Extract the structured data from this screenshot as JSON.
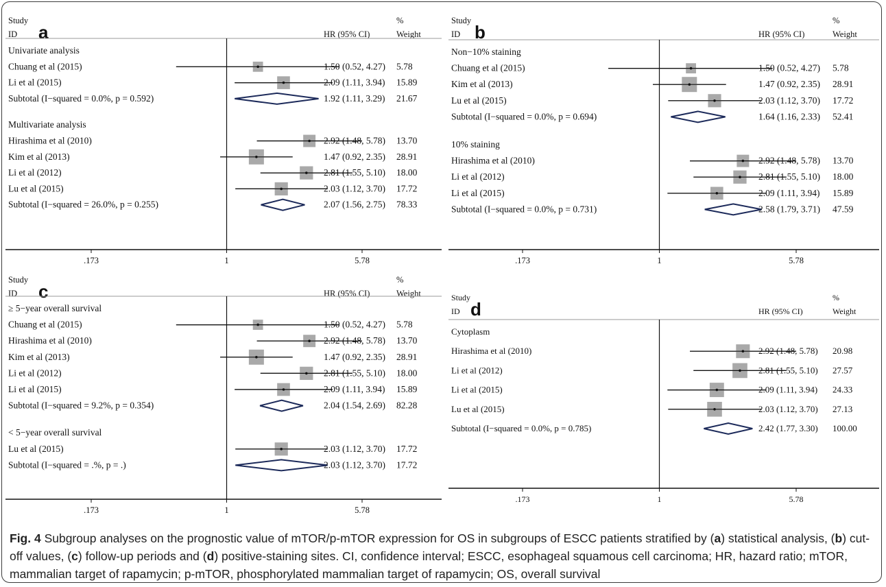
{
  "figure": {
    "caption": {
      "fig_label": "Fig. 4",
      "part1": " Subgroup analyses on the prognostic value of mTOR/p-mTOR expression for OS in subgroups of ESCC patients stratified by (",
      "a": "a",
      "part2": ") statistical analysis, (",
      "b": "b",
      "part3": ") cut-off values, (",
      "c": "c",
      "part4": ") follow-up periods and (",
      "d": "d",
      "part5": ") positive-staining sites. CI, confidence interval; ESCC, esophageal squamous cell carcinoma; HR, hazard ratio; mTOR, mammalian target of rapamycin; p-mTOR, phosphorylated mammalian target of rapamycin; OS, overall survival"
    }
  },
  "chart_data": [
    {
      "type": "forest",
      "panel": "a",
      "header": {
        "study": "Study",
        "id": "ID",
        "hr": "HR (95% CI)",
        "pct": "%",
        "weight": "Weight"
      },
      "xscale": "log",
      "xlim": [
        0.173,
        5.78
      ],
      "xticks": [
        ".173",
        "1",
        "5.78"
      ],
      "tick_values": [
        0.173,
        1,
        5.78
      ],
      "groups": [
        {
          "name": "Univariate analysis",
          "studies": [
            {
              "label": "Chuang et al (2015)",
              "hr": 1.5,
              "lo": 0.52,
              "hi": 4.27,
              "weight": 5.78,
              "hr_text": "1.50 (0.52, 4.27)",
              "weight_text": "5.78"
            },
            {
              "label": "Li et al (2015)",
              "hr": 2.09,
              "lo": 1.11,
              "hi": 3.94,
              "weight": 15.89,
              "hr_text": "2.09 (1.11, 3.94)",
              "weight_text": "15.89"
            }
          ],
          "subtotal": {
            "label": "Subtotal  (I−squared = 0.0%, p = 0.592)",
            "hr": 1.92,
            "lo": 1.11,
            "hi": 3.29,
            "hr_text": "1.92 (1.11, 3.29)",
            "weight_text": "21.67"
          }
        },
        {
          "name": "Multivariate analysis",
          "studies": [
            {
              "label": "Hirashima et al (2010)",
              "hr": 2.92,
              "lo": 1.48,
              "hi": 5.78,
              "weight": 13.7,
              "hr_text": "2.92 (1.48, 5.78)",
              "weight_text": "13.70"
            },
            {
              "label": "Kim et al (2013)",
              "hr": 1.47,
              "lo": 0.92,
              "hi": 2.35,
              "weight": 28.91,
              "hr_text": "1.47 (0.92, 2.35)",
              "weight_text": "28.91"
            },
            {
              "label": "Li et al (2012)",
              "hr": 2.81,
              "lo": 1.55,
              "hi": 5.1,
              "weight": 18.0,
              "hr_text": "2.81 (1.55, 5.10)",
              "weight_text": "18.00"
            },
            {
              "label": "Lu et al (2015)",
              "hr": 2.03,
              "lo": 1.12,
              "hi": 3.7,
              "weight": 17.72,
              "hr_text": "2.03 (1.12, 3.70)",
              "weight_text": "17.72"
            }
          ],
          "subtotal": {
            "label": "Subtotal  (I−squared = 26.0%, p = 0.255)",
            "hr": 2.07,
            "lo": 1.56,
            "hi": 2.75,
            "hr_text": "2.07 (1.56, 2.75)",
            "weight_text": "78.33"
          }
        }
      ]
    },
    {
      "type": "forest",
      "panel": "b",
      "header": {
        "study": "Study",
        "id": "ID",
        "hr": "HR (95% CI)",
        "pct": "%",
        "weight": "Weight"
      },
      "xscale": "log",
      "xlim": [
        0.173,
        5.78
      ],
      "xticks": [
        ".173",
        "1",
        "5.78"
      ],
      "tick_values": [
        0.173,
        1,
        5.78
      ],
      "groups": [
        {
          "name": "Non−10% staining",
          "studies": [
            {
              "label": "Chuang et al (2015)",
              "hr": 1.5,
              "lo": 0.52,
              "hi": 4.27,
              "weight": 5.78,
              "hr_text": "1.50 (0.52, 4.27)",
              "weight_text": "5.78"
            },
            {
              "label": "Kim et al (2013)",
              "hr": 1.47,
              "lo": 0.92,
              "hi": 2.35,
              "weight": 28.91,
              "hr_text": "1.47 (0.92, 2.35)",
              "weight_text": "28.91"
            },
            {
              "label": "Lu et al (2015)",
              "hr": 2.03,
              "lo": 1.12,
              "hi": 3.7,
              "weight": 17.72,
              "hr_text": "2.03 (1.12, 3.70)",
              "weight_text": "17.72"
            }
          ],
          "subtotal": {
            "label": "Subtotal  (I−squared = 0.0%, p = 0.694)",
            "hr": 1.64,
            "lo": 1.16,
            "hi": 2.33,
            "hr_text": "1.64 (1.16, 2.33)",
            "weight_text": "52.41"
          }
        },
        {
          "name": "10% staining",
          "studies": [
            {
              "label": "Hirashima et al (2010)",
              "hr": 2.92,
              "lo": 1.48,
              "hi": 5.78,
              "weight": 13.7,
              "hr_text": "2.92 (1.48, 5.78)",
              "weight_text": "13.70"
            },
            {
              "label": "Li et al (2012)",
              "hr": 2.81,
              "lo": 1.55,
              "hi": 5.1,
              "weight": 18.0,
              "hr_text": "2.81 (1.55, 5.10)",
              "weight_text": "18.00"
            },
            {
              "label": "Li et al (2015)",
              "hr": 2.09,
              "lo": 1.11,
              "hi": 3.94,
              "weight": 15.89,
              "hr_text": "2.09 (1.11, 3.94)",
              "weight_text": "15.89"
            }
          ],
          "subtotal": {
            "label": "Subtotal  (I−squared = 0.0%, p = 0.731)",
            "hr": 2.58,
            "lo": 1.79,
            "hi": 3.71,
            "hr_text": "2.58 (1.79, 3.71)",
            "weight_text": "47.59"
          }
        }
      ]
    },
    {
      "type": "forest",
      "panel": "c",
      "header": {
        "study": "Study",
        "id": "ID",
        "hr": "HR (95% CI)",
        "pct": "%",
        "weight": "Weight"
      },
      "xscale": "log",
      "xlim": [
        0.173,
        5.78
      ],
      "xticks": [
        ".173",
        "1",
        "5.78"
      ],
      "tick_values": [
        0.173,
        1,
        5.78
      ],
      "groups": [
        {
          "name": "≥ 5−year overall survival",
          "studies": [
            {
              "label": "Chuang et al (2015)",
              "hr": 1.5,
              "lo": 0.52,
              "hi": 4.27,
              "weight": 5.78,
              "hr_text": "1.50 (0.52, 4.27)",
              "weight_text": "5.78"
            },
            {
              "label": "Hirashima et al (2010)",
              "hr": 2.92,
              "lo": 1.48,
              "hi": 5.78,
              "weight": 13.7,
              "hr_text": "2.92 (1.48, 5.78)",
              "weight_text": "13.70"
            },
            {
              "label": "Kim et al (2013)",
              "hr": 1.47,
              "lo": 0.92,
              "hi": 2.35,
              "weight": 28.91,
              "hr_text": "1.47 (0.92, 2.35)",
              "weight_text": "28.91"
            },
            {
              "label": "Li et al (2012)",
              "hr": 2.81,
              "lo": 1.55,
              "hi": 5.1,
              "weight": 18.0,
              "hr_text": "2.81 (1.55, 5.10)",
              "weight_text": "18.00"
            },
            {
              "label": "Li et al (2015)",
              "hr": 2.09,
              "lo": 1.11,
              "hi": 3.94,
              "weight": 15.89,
              "hr_text": "2.09 (1.11, 3.94)",
              "weight_text": "15.89"
            }
          ],
          "subtotal": {
            "label": "Subtotal  (I−squared = 9.2%, p = 0.354)",
            "hr": 2.04,
            "lo": 1.54,
            "hi": 2.69,
            "hr_text": "2.04 (1.54, 2.69)",
            "weight_text": "82.28"
          }
        },
        {
          "name": "< 5−year overall survival",
          "studies": [
            {
              "label": "Lu et al (2015)",
              "hr": 2.03,
              "lo": 1.12,
              "hi": 3.7,
              "weight": 17.72,
              "hr_text": "2.03 (1.12, 3.70)",
              "weight_text": "17.72"
            }
          ],
          "subtotal": {
            "label": "Subtotal  (I−squared = .%, p = .)",
            "hr": 2.03,
            "lo": 1.12,
            "hi": 3.7,
            "hr_text": "2.03 (1.12, 3.70)",
            "weight_text": "17.72"
          }
        }
      ]
    },
    {
      "type": "forest",
      "panel": "d",
      "header": {
        "study": "Study",
        "id": "ID",
        "hr": "HR (95% CI)",
        "pct": "%",
        "weight": "Weight"
      },
      "xscale": "log",
      "xlim": [
        0.173,
        5.78
      ],
      "xticks": [
        ".173",
        "1",
        "5.78"
      ],
      "tick_values": [
        0.173,
        1,
        5.78
      ],
      "groups": [
        {
          "name": "Cytoplasm",
          "studies": [
            {
              "label": "Hirashima et al (2010)",
              "hr": 2.92,
              "lo": 1.48,
              "hi": 5.78,
              "weight": 20.98,
              "hr_text": "2.92 (1.48, 5.78)",
              "weight_text": "20.98"
            },
            {
              "label": "Li et al (2012)",
              "hr": 2.81,
              "lo": 1.55,
              "hi": 5.1,
              "weight": 27.57,
              "hr_text": "2.81 (1.55, 5.10)",
              "weight_text": "27.57"
            },
            {
              "label": "Li et al (2015)",
              "hr": 2.09,
              "lo": 1.11,
              "hi": 3.94,
              "weight": 24.33,
              "hr_text": "2.09 (1.11, 3.94)",
              "weight_text": "24.33"
            },
            {
              "label": "Lu et al (2015)",
              "hr": 2.03,
              "lo": 1.12,
              "hi": 3.7,
              "weight": 27.13,
              "hr_text": "2.03 (1.12, 3.70)",
              "weight_text": "27.13"
            }
          ],
          "subtotal": {
            "label": "Subtotal  (I−squared = 0.0%, p = 0.785)",
            "hr": 2.42,
            "lo": 1.77,
            "hi": 3.3,
            "hr_text": "2.42 (1.77, 3.30)",
            "weight_text": "100.00"
          }
        }
      ]
    }
  ]
}
